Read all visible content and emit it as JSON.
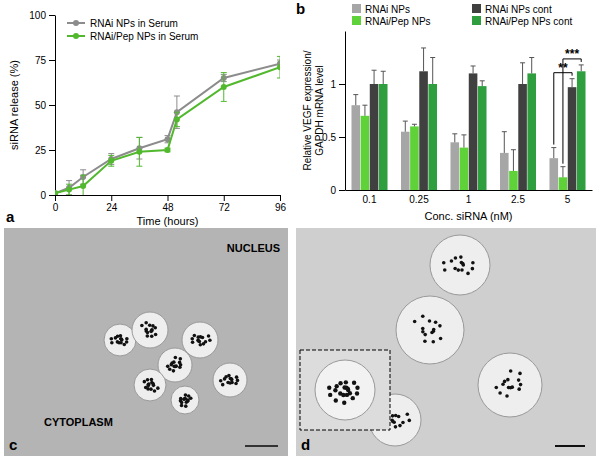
{
  "chart_data": [
    {
      "type": "line",
      "title": "a",
      "x_label": "Time (hours)",
      "y_label": "siRNA release (%)",
      "x": [
        0,
        6,
        12,
        24,
        36,
        48,
        52,
        72,
        96
      ],
      "xlim": [
        0,
        96
      ],
      "xticks": [
        0,
        24,
        48,
        72,
        96
      ],
      "ylim": [
        0,
        100
      ],
      "yticks": [
        0,
        25,
        50,
        75,
        100
      ],
      "grid": false,
      "legend": "upper left",
      "marker": "circle",
      "line_style": "solid",
      "series": [
        {
          "name": "RNAi NPs in Serum",
          "color": "#8c8c8c",
          "values": [
            1,
            4,
            10,
            20,
            26,
            31,
            46,
            65,
            73
          ],
          "errors": [
            1,
            4,
            4,
            3,
            6,
            2,
            9,
            2,
            2
          ]
        },
        {
          "name": "RNAi/Pep NPs in Serum",
          "color": "#52b82e",
          "values": [
            1,
            3,
            5,
            19,
            24,
            25,
            42,
            60,
            71
          ],
          "errors": [
            1,
            3,
            6,
            3,
            8,
            1,
            4,
            8,
            6
          ]
        }
      ]
    },
    {
      "type": "bar",
      "title": "b",
      "x_label": "Conc. siRNA (nM)",
      "y_label": [
        "Relative VEGF expression/",
        "GAPDH mRNA level"
      ],
      "categories": [
        "0.1",
        "0.25",
        "1",
        "2.5",
        "5"
      ],
      "ylim": [
        0,
        1.5
      ],
      "yticks": [
        0,
        0.5,
        1
      ],
      "grid": false,
      "legend": "top",
      "series": [
        {
          "name": "RNAi NPs",
          "color": "#a6a6a6",
          "values": [
            0.8,
            0.55,
            0.45,
            0.35,
            0.3
          ],
          "errors": [
            0.1,
            0.1,
            0.08,
            0.2,
            0.1
          ]
        },
        {
          "name": "RNAi/Pep NPs",
          "color": "#5fd23a",
          "values": [
            0.7,
            0.6,
            0.4,
            0.18,
            0.12
          ],
          "errors": [
            0.1,
            0.02,
            0.12,
            0.2,
            0.1
          ]
        },
        {
          "name": "RNAi NPs cont",
          "color": "#404040",
          "values": [
            1.0,
            1.12,
            1.1,
            1.0,
            0.97
          ],
          "errors": [
            0.13,
            0.22,
            0.07,
            0.2,
            0.08
          ]
        },
        {
          "name": "RNAi/Pep NPs cont",
          "color": "#2e9e3e",
          "values": [
            1.0,
            1.0,
            0.98,
            1.1,
            1.12
          ],
          "errors": [
            0.12,
            0.25,
            0.05,
            0.15,
            0.06
          ]
        }
      ],
      "annotations": [
        {
          "text": "**",
          "category": "5",
          "between": [
            "RNAi NPs",
            "RNAi NPs cont"
          ]
        },
        {
          "text": "***",
          "category": "5",
          "between": [
            "RNAi/Pep NPs",
            "RNAi/Pep NPs cont"
          ]
        }
      ]
    }
  ],
  "images": [
    {
      "label": "c",
      "texts": [
        "NUCLEUS",
        "CYTOPLASM"
      ]
    },
    {
      "label": "d"
    }
  ]
}
